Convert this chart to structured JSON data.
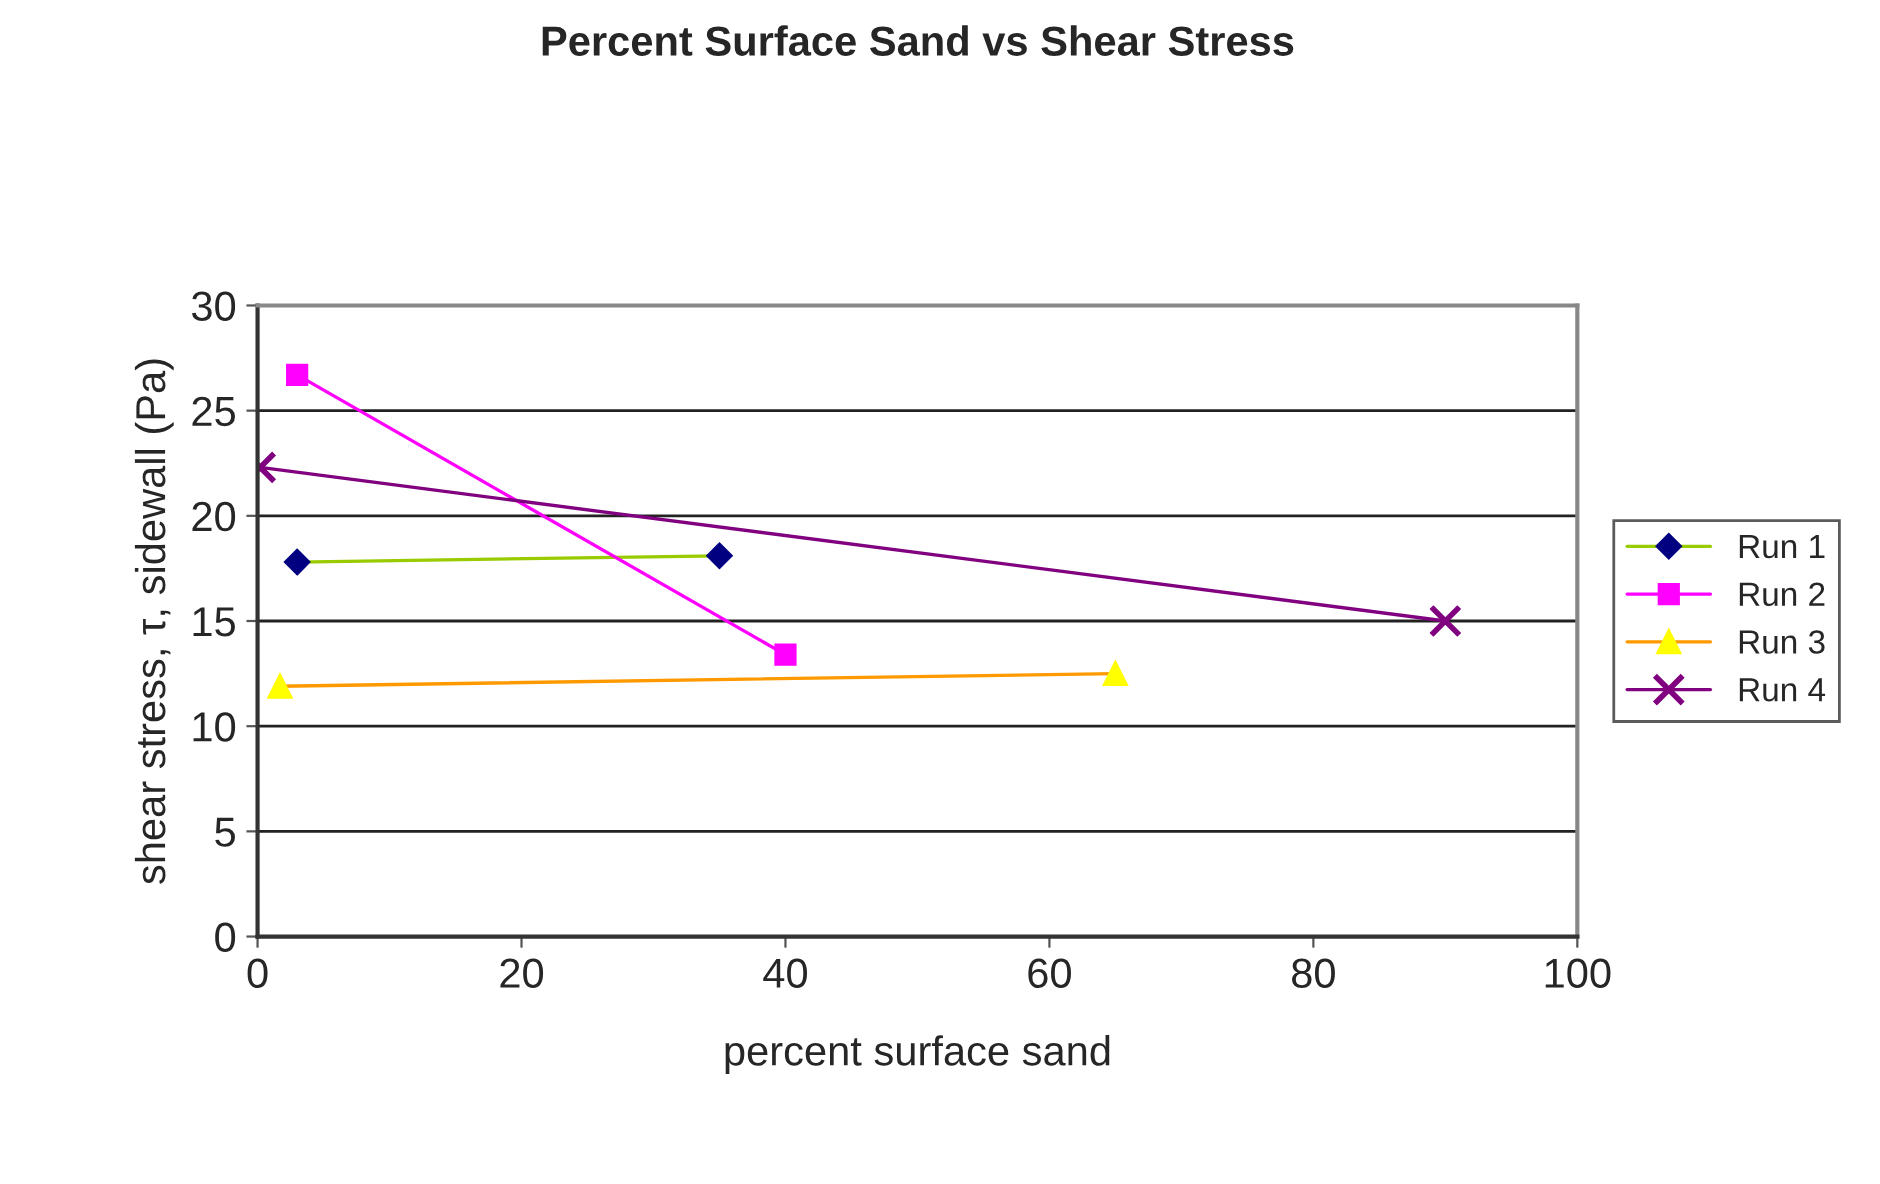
{
  "chart_data": {
    "type": "line",
    "title": "Percent Surface Sand vs Shear Stress",
    "xlabel": "percent surface sand",
    "ylabel": "shear stress, τ, sidewall (Pa)",
    "xlim": [
      0,
      100
    ],
    "xticks": [
      0,
      20,
      40,
      60,
      80,
      100
    ],
    "ylim": [
      0,
      30
    ],
    "yticks": [
      0,
      5,
      10,
      15,
      20,
      25,
      30
    ],
    "grid": "y",
    "legend": "right",
    "series": [
      {
        "name": "Run 1",
        "color": "#99cc00",
        "colors": [
          "#000080",
          "#000080"
        ],
        "marker": "diamond",
        "x": [
          3,
          35
        ],
        "values": [
          17.8,
          18.1
        ]
      },
      {
        "name": "Run 2",
        "color": "#ff00ff",
        "colors": [
          "#ff00ff",
          "#ff00ff"
        ],
        "marker": "square",
        "x": [
          3,
          40
        ],
        "values": [
          26.7,
          13.4
        ]
      },
      {
        "name": "Run 3",
        "color": "#ff9900",
        "colors": [
          "#ffff00",
          "#ffff00"
        ],
        "marker": "triangle",
        "x": [
          1.7,
          65
        ],
        "values": [
          11.9,
          12.5
        ]
      },
      {
        "name": "Run 4",
        "color": "#800080",
        "colors": [
          "#800080",
          "#800080"
        ],
        "marker": "cross",
        "x": [
          0.2,
          90
        ],
        "values": [
          22.3,
          15.0
        ]
      }
    ]
  }
}
